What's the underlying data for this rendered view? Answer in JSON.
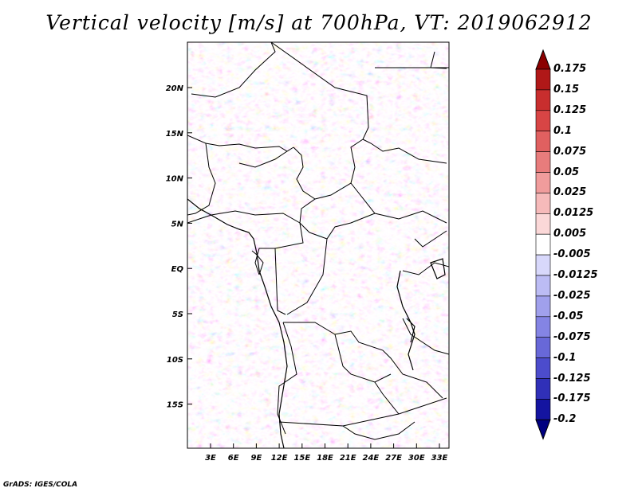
{
  "title": "Vertical velocity [m/s] at 700hPa, VT: 2019062912",
  "credit": "GrADS: IGES/COLA",
  "lat_ticks": [
    "20N",
    "15N",
    "10N",
    "5N",
    "EQ",
    "5S",
    "10S",
    "15S"
  ],
  "lon_ticks": [
    "3E",
    "6E",
    "9E",
    "12E",
    "15E",
    "18E",
    "21E",
    "24E",
    "27E",
    "30E",
    "33E"
  ],
  "colorbar": {
    "labels": [
      "0.175",
      "0.15",
      "0.125",
      "0.1",
      "0.075",
      "0.05",
      "0.025",
      "0.0125",
      "0.005",
      "-0.005",
      "-0.0125",
      "-0.025",
      "-0.05",
      "-0.075",
      "-0.1",
      "-0.125",
      "-0.175",
      "-0.2"
    ],
    "colors": [
      "#8b0000",
      "#b01818",
      "#c82e2e",
      "#d84545",
      "#e06060",
      "#e87c7c",
      "#f09c9c",
      "#f6baba",
      "#fbd8d8",
      "#ffffff",
      "#d8d8fb",
      "#bcbcf4",
      "#a0a0ec",
      "#8484e4",
      "#6868d8",
      "#4c4ccc",
      "#3030b8",
      "#1414a0",
      "#000080"
    ],
    "top_arrow_color": "#8b0000",
    "bottom_arrow_color": "#000080"
  }
}
